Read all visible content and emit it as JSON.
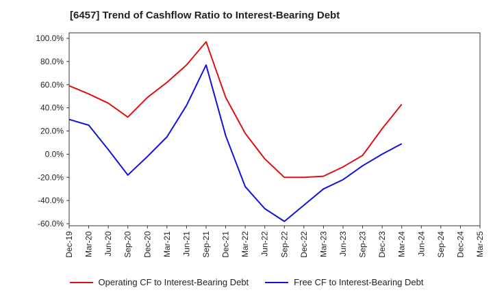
{
  "title": "[6457]  Trend of Cashflow Ratio to Interest-Bearing Debt",
  "colors": {
    "operating": "#dd1111",
    "free": "#1111dd",
    "grid": "#888888",
    "axis": "#333333"
  },
  "chart_data": {
    "type": "line",
    "x": [
      "Dec-19",
      "Mar-20",
      "Jun-20",
      "Sep-20",
      "Dec-20",
      "Mar-21",
      "Jun-21",
      "Sep-21",
      "Dec-21",
      "Mar-22",
      "Jun-22",
      "Sep-22",
      "Dec-22",
      "Mar-23",
      "Jun-23",
      "Sep-23",
      "Dec-23",
      "Mar-24",
      "Jun-24",
      "Sep-24",
      "Dec-24",
      "Mar-25"
    ],
    "ylim": [
      -60,
      100
    ],
    "yticks": [
      100,
      80,
      60,
      40,
      20,
      0,
      -20,
      -40,
      -60
    ],
    "ytick_labels": [
      "100.0%",
      "80.0%",
      "60.0%",
      "40.0%",
      "20.0%",
      "0.0%",
      "-20.0%",
      "-40.0%",
      "-60.0%"
    ],
    "grid": true,
    "legend_position": "bottom",
    "series": [
      {
        "name": "Operating CF to Interest-Bearing Debt",
        "values": [
          59,
          52,
          44,
          32,
          49,
          62,
          77,
          97,
          49,
          18,
          -4,
          -20,
          -20,
          -19,
          -11,
          -1,
          22,
          43,
          null,
          null,
          null,
          null
        ]
      },
      {
        "name": "Free CF to Interest-Bearing Debt",
        "values": [
          30,
          25,
          4,
          -18,
          -2,
          15,
          42,
          77,
          16,
          -28,
          -47,
          -58,
          -44,
          -30,
          -22,
          -10,
          0,
          9,
          null,
          null,
          null,
          null
        ]
      }
    ]
  }
}
